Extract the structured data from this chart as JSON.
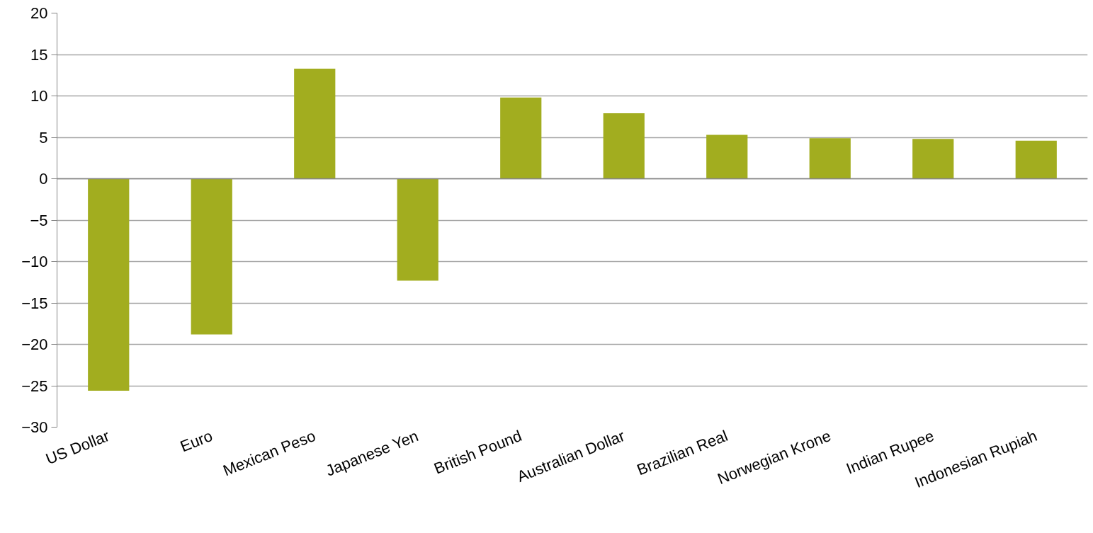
{
  "chart_data": {
    "type": "bar",
    "categories": [
      "US Dollar",
      "Euro",
      "Mexican Peso",
      "Japanese Yen",
      "British Pound",
      "Australian Dollar",
      "Brazilian Real",
      "Norwegian Krone",
      "Indian Rupee",
      "Indonesian Rupiah"
    ],
    "values": [
      -25.6,
      -18.8,
      13.3,
      -12.3,
      9.8,
      7.9,
      5.3,
      4.9,
      4.8,
      4.6
    ],
    "color": "#a2ad1f",
    "ylim": [
      -30,
      20
    ],
    "yticks": [
      -30,
      -25,
      -20,
      -15,
      -10,
      -5,
      0,
      5,
      10,
      15,
      20
    ],
    "grid": "y"
  }
}
